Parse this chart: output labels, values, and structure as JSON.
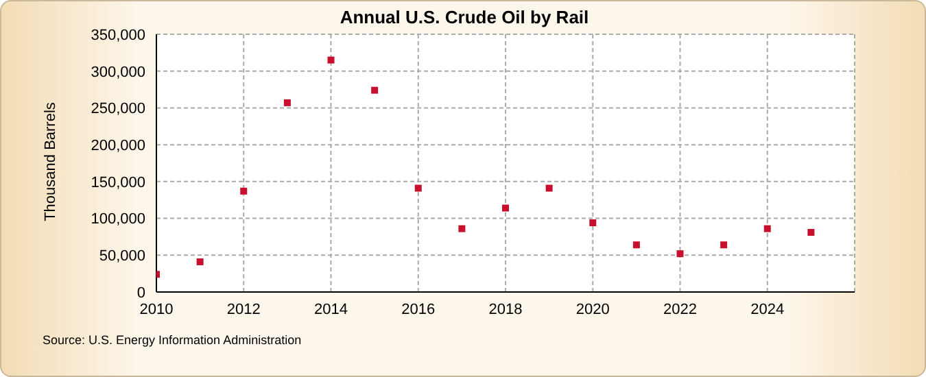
{
  "chart_data": {
    "type": "scatter",
    "title": "Annual U.S. Crude Oil by Rail",
    "ylabel": "Thousand Barrels",
    "x": [
      2010,
      2011,
      2012,
      2013,
      2014,
      2015,
      2016,
      2017,
      2018,
      2019,
      2020,
      2021,
      2022,
      2023,
      2024,
      2025
    ],
    "series": [
      {
        "color": "#c8102e",
        "values": [
          24000,
          41000,
          137000,
          257000,
          315000,
          274000,
          141000,
          86000,
          114000,
          141000,
          94000,
          64000,
          52000,
          64000,
          86000,
          81000
        ]
      }
    ],
    "xlim": [
      2010,
      2026
    ],
    "xticks": [
      2010,
      2012,
      2014,
      2016,
      2018,
      2020,
      2022,
      2024
    ],
    "ylim": [
      0,
      350000
    ],
    "yticks": [
      0,
      {
        "value": 50000,
        "label": "50,000"
      },
      {
        "value": 100000,
        "label": "100,000"
      },
      {
        "value": 150000,
        "label": "150,000"
      },
      {
        "value": 200000,
        "label": "200,000"
      },
      {
        "value": 250000,
        "label": "250,000"
      },
      {
        "value": 300000,
        "label": "300,000"
      },
      {
        "value": 350000,
        "label": "350,000"
      }
    ],
    "grid": true,
    "marker": "square",
    "annotations": [
      "Source: U.S. Energy Information Administration"
    ]
  }
}
